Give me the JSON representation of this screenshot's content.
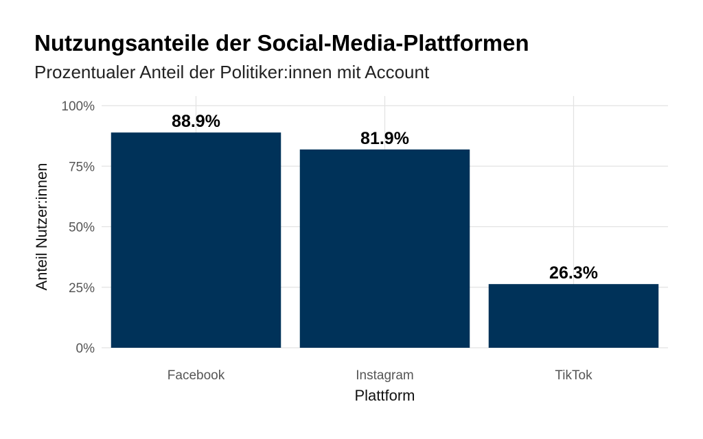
{
  "title": "Nutzungsanteile der Social-Media-Plattformen",
  "subtitle": "Prozentualer Anteil der Politiker:innen mit Account",
  "chart_data": {
    "type": "bar",
    "categories": [
      "Facebook",
      "Instagram",
      "TikTok"
    ],
    "values": [
      88.9,
      81.9,
      26.3
    ],
    "data_labels": [
      "88.9%",
      "81.9%",
      "26.3%"
    ],
    "xlabel": "Plattform",
    "ylabel": "Anteil Nutzer:innen",
    "ylim": [
      0,
      100
    ],
    "yticks": [
      0,
      25,
      50,
      75,
      100
    ],
    "ytick_labels": [
      "0%",
      "25%",
      "50%",
      "75%",
      "100%"
    ],
    "grid": true,
    "bar_color": "#003259"
  }
}
